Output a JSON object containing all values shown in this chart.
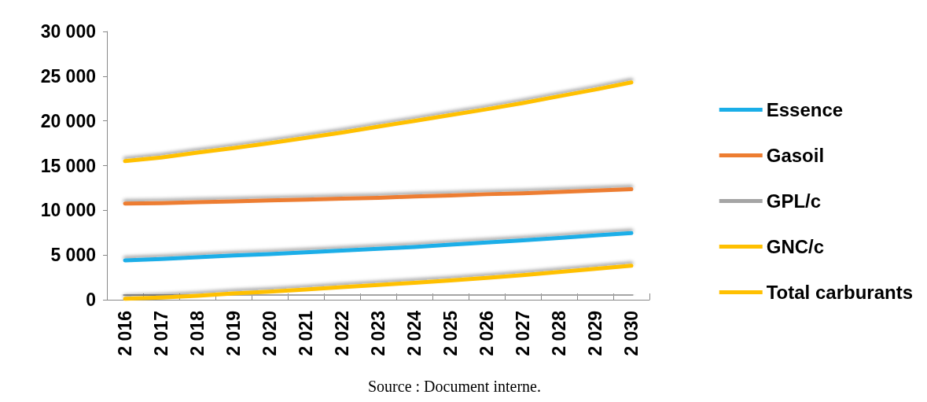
{
  "chart_data": {
    "type": "line",
    "categories": [
      "2 016",
      "2 017",
      "2 018",
      "2 019",
      "2 020",
      "2 021",
      "2 022",
      "2 023",
      "2 024",
      "2 025",
      "2 026",
      "2 027",
      "2 028",
      "2 029",
      "2 030"
    ],
    "series": [
      {
        "name": "Essence",
        "color": "#1aaee8",
        "values": [
          4400,
          4550,
          4750,
          4950,
          5100,
          5300,
          5500,
          5700,
          5900,
          6150,
          6400,
          6650,
          6900,
          7200,
          7450
        ]
      },
      {
        "name": "Gasoil",
        "color": "#ed7d31",
        "values": [
          10750,
          10800,
          10900,
          11000,
          11100,
          11200,
          11300,
          11400,
          11550,
          11650,
          11800,
          11900,
          12050,
          12200,
          12350
        ]
      },
      {
        "name": "GPL/c",
        "color": "#a5a5a5",
        "values": [
          500,
          500,
          500,
          500,
          500,
          500,
          500,
          500,
          500,
          500,
          500,
          550,
          550,
          550,
          550
        ]
      },
      {
        "name": "GNC/c",
        "color": "#ffc000",
        "values": [
          100,
          250,
          450,
          700,
          900,
          1150,
          1400,
          1650,
          1900,
          2150,
          2450,
          2750,
          3100,
          3450,
          3800
        ]
      },
      {
        "name": "Total carburants",
        "color": "#ffc000",
        "values": [
          15500,
          15900,
          16450,
          16950,
          17500,
          18100,
          18700,
          19350,
          20000,
          20650,
          21300,
          22000,
          22750,
          23500,
          24300
        ]
      }
    ],
    "ylim": [
      0,
      30000
    ],
    "yticks": [
      {
        "value": 0,
        "label": "0"
      },
      {
        "value": 5000,
        "label": "5 000"
      },
      {
        "value": 10000,
        "label": "10 000"
      },
      {
        "value": 15000,
        "label": "15 000"
      },
      {
        "value": 20000,
        "label": "20 000"
      },
      {
        "value": 25000,
        "label": "25 000"
      },
      {
        "value": 30000,
        "label": "30 000"
      }
    ],
    "grid": false,
    "legend": "right",
    "marker": "none",
    "line_style": "solid",
    "annotations": [
      "Source : Document interne."
    ]
  }
}
